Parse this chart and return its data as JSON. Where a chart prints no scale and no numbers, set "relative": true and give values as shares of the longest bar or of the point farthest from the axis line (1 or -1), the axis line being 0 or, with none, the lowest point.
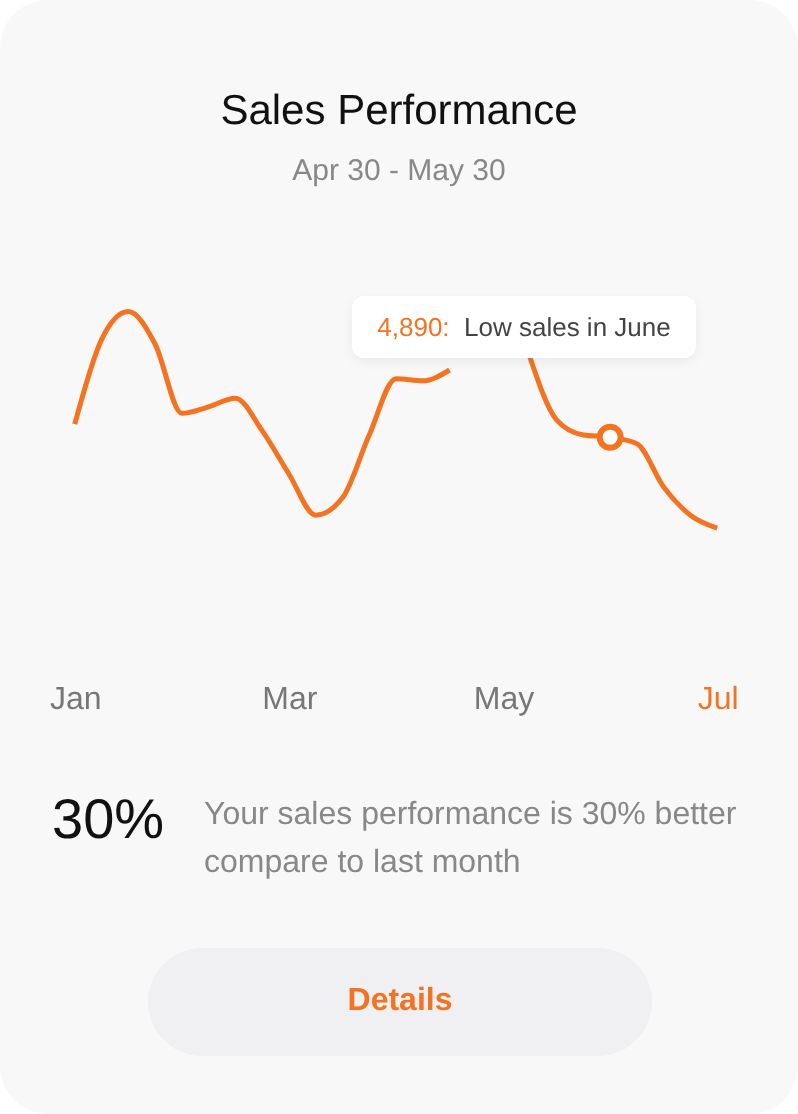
{
  "chart_data": {
    "type": "line",
    "title": "Sales Performance",
    "subtitle": "Apr 30 - May 30",
    "relative": true,
    "categories": [
      "Jan",
      null,
      null,
      null,
      null,
      null,
      null,
      null,
      "Mar",
      null,
      null,
      null,
      null,
      null,
      null,
      null,
      "May",
      null,
      null,
      null,
      null,
      null,
      null,
      null,
      "Jul"
    ],
    "series": [
      {
        "color": "#f47321",
        "values": [
          0.48,
          0.87,
          1,
          0.85,
          0.53,
          0.56,
          0.6,
          0.45,
          0.25,
          0.06,
          0.14,
          0.43,
          0.69,
          0.68,
          0.73,
          null,
          null,
          0.79,
          0.5,
          0.43,
          0.42,
          0.39,
          0.19,
          0.06,
          0
        ]
      },
      {
        "type": "scatter",
        "color": "#f47321",
        "marker": "circle",
        "values": [
          null,
          null,
          null,
          null,
          null,
          null,
          null,
          null,
          null,
          null,
          null,
          null,
          null,
          null,
          null,
          null,
          null,
          null,
          null,
          null,
          0.42,
          null,
          null,
          null,
          null
        ]
      }
    ],
    "annotations": [
      "4,890: Low sales in June",
      "30%",
      "Your sales performance is 30% better compare to last month",
      "Details"
    ]
  }
}
